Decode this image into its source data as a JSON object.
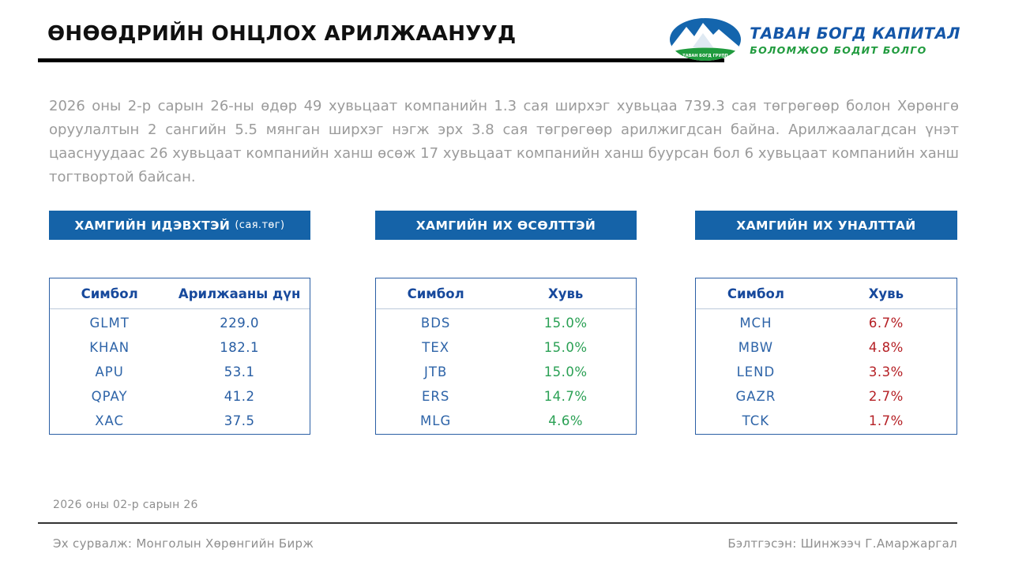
{
  "header": {
    "title": "ӨНӨӨДРИЙН ОНЦЛОХ АРИЛЖААНУУД",
    "logo": {
      "company_name": "ТАВАН БОГД КАПИТАЛ",
      "tagline": "БОЛОМЖОО БОДИТ БОЛГО",
      "emblem_text": "ТАВАН БОГД ГРУПП"
    }
  },
  "summary_paragraph": "2026 оны 2-р сарын 26-ны өдөр 49 хувьцаат компанийн 1.3 сая ширхэг хувьцаа 739.3 сая төгрөгөөр болон Хөрөнгө оруулалтын 2 сангийн 5.5 мянган ширхэг нэгж эрх 3.8 сая төгрөгөөр арилжигдсан байна. Арилжаалагдсан үнэт цааснуудаас 26 хувьцаат компанийн ханш өсөж 17 хувьцаат компанийн ханш буурсан бол 6 хувьцаат компанийн ханш тогтвортой байсан.",
  "tables": [
    {
      "id": "most-active",
      "banner": "ХАМГИЙН ИДЭВХТЭЙ",
      "banner_suffix": "(сая.төг)",
      "columns": [
        "Симбол",
        "Арилжааны дүн"
      ],
      "value_color": "#275da3",
      "rows": [
        [
          "GLMT",
          "229.0"
        ],
        [
          "KHAN",
          "182.1"
        ],
        [
          "APU",
          "53.1"
        ],
        [
          "QPAY",
          "41.2"
        ],
        [
          "XAC",
          "37.5"
        ]
      ]
    },
    {
      "id": "top-gainers",
      "banner": "ХАМГИЙН ИХ ӨСӨЛТТЭЙ",
      "banner_suffix": "",
      "columns": [
        "Симбол",
        "Хувь"
      ],
      "value_color": "#2aa054",
      "rows": [
        [
          "BDS",
          "15.0%"
        ],
        [
          "TEX",
          "15.0%"
        ],
        [
          "JTB",
          "15.0%"
        ],
        [
          "ERS",
          "14.7%"
        ],
        [
          "MLG",
          "4.6%"
        ]
      ]
    },
    {
      "id": "top-losers",
      "banner": "ХАМГИЙН ИХ УНАЛТТАЙ",
      "banner_suffix": "",
      "columns": [
        "Симбол",
        "Хувь"
      ],
      "value_color": "#b52025",
      "rows": [
        [
          "MCH",
          "6.7%"
        ],
        [
          "MBW",
          "4.8%"
        ],
        [
          "LEND",
          "3.3%"
        ],
        [
          "GAZR",
          "2.7%"
        ],
        [
          "TCK",
          "1.7%"
        ]
      ]
    }
  ],
  "footer": {
    "date": "2026 оны 02-р сарын 26",
    "source": "Эх сурвалж: Монголын Хөрөнгийн Бирж",
    "prepared_by": "Бэлтгэсэн: Шинжээч Г.Амаржаргал"
  },
  "colors": {
    "banner_blue": "#1563a8",
    "table_border": "#2b5fa5",
    "header_text": "#17499c",
    "symbol_text": "#2e64a8",
    "value_blue": "#275da3",
    "value_green": "#2aa054",
    "value_red": "#b52025",
    "summary_gray": "#9b9b9b",
    "footer_gray": "#8f8f8f",
    "logo_blue": "#1356a8",
    "logo_green": "#209b3e"
  }
}
